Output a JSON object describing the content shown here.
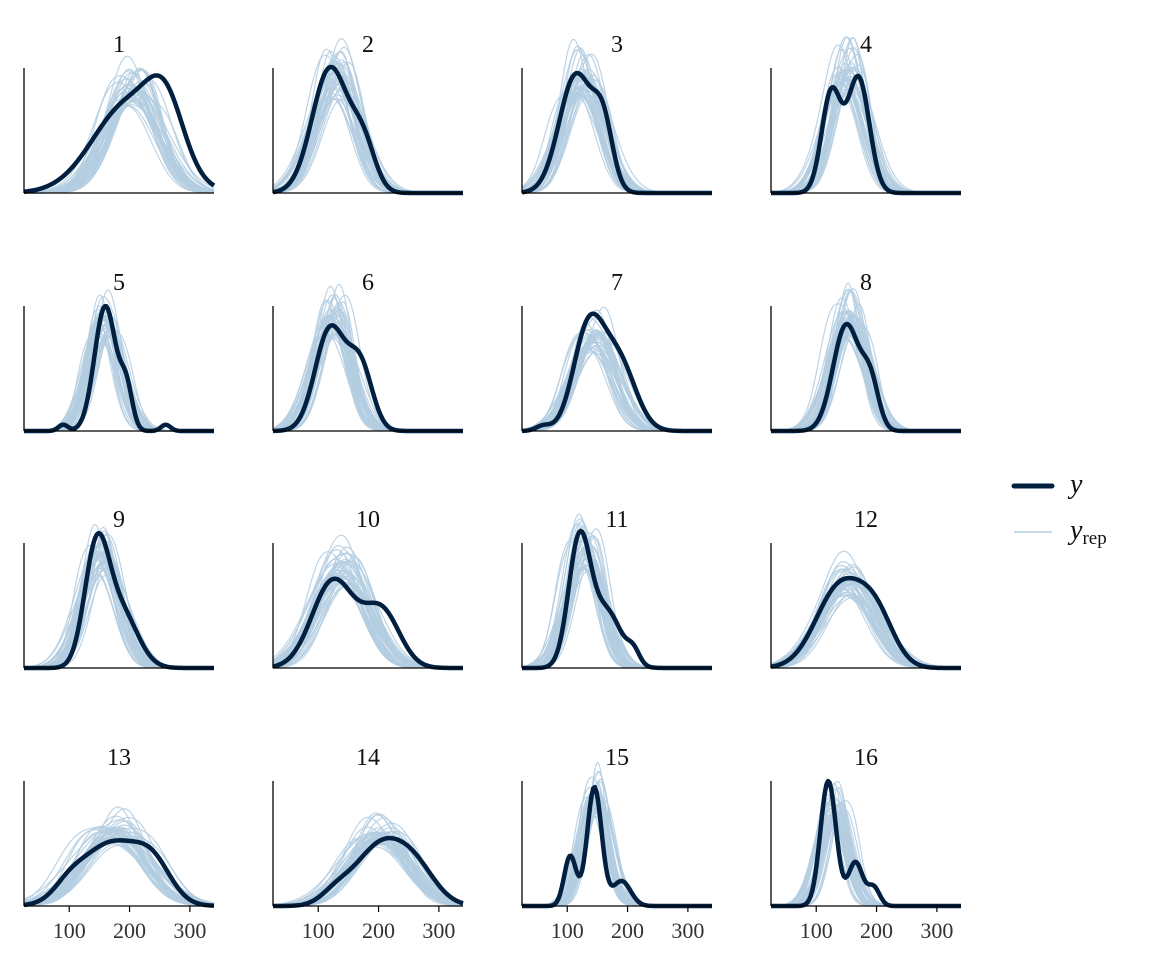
{
  "chart_data": {
    "type": "density-overlay",
    "x_range": [
      25,
      340
    ],
    "x_ticks": [
      100,
      200,
      300
    ],
    "x_tick_labels": [
      "100",
      "200",
      "300"
    ],
    "y_axis_ticks_shown": false,
    "grid": false,
    "colors": {
      "y": "#011f3f",
      "yrep": "#b3cde0",
      "axis": "#000000",
      "text": "#111111"
    },
    "legend": {
      "position": "right",
      "entries": [
        {
          "key": "y",
          "label": "y",
          "sub": ""
        },
        {
          "key": "yrep",
          "label": "y",
          "sub": "rep"
        }
      ]
    },
    "panels": [
      {
        "label": "1",
        "y_peaks": [
          [
            200,
            60,
            0.72
          ],
          [
            260,
            30,
            0.45
          ]
        ],
        "yrep_peak": [
          205,
          45
        ],
        "yrep_height": 0.86
      },
      {
        "label": "2",
        "y_peaks": [
          [
            120,
            30,
            1.0
          ],
          [
            175,
            20,
            0.35
          ]
        ],
        "yrep_peak": [
          130,
          35
        ],
        "yrep_height": 0.95
      },
      {
        "label": "3",
        "y_peaks": [
          [
            115,
            28,
            0.95
          ],
          [
            160,
            16,
            0.45
          ]
        ],
        "yrep_peak": [
          125,
          33
        ],
        "yrep_height": 0.98
      },
      {
        "label": "4",
        "y_peaks": [
          [
            125,
            16,
            0.8
          ],
          [
            170,
            18,
            0.92
          ]
        ],
        "yrep_peak": [
          150,
          30
        ],
        "yrep_height": 0.98
      },
      {
        "label": "5",
        "y_peaks": [
          [
            160,
            18,
            1.0
          ],
          [
            195,
            10,
            0.3
          ],
          [
            90,
            8,
            0.05
          ],
          [
            260,
            8,
            0.05
          ]
        ],
        "yrep_peak": [
          160,
          26
        ],
        "yrep_height": 0.92
      },
      {
        "label": "6",
        "y_peaks": [
          [
            120,
            25,
            0.82
          ],
          [
            170,
            20,
            0.5
          ]
        ],
        "yrep_peak": [
          125,
          30
        ],
        "yrep_height": 0.92
      },
      {
        "label": "7",
        "y_peaks": [
          [
            135,
            25,
            0.8
          ],
          [
            185,
            28,
            0.55
          ],
          [
            60,
            12,
            0.04
          ]
        ],
        "yrep_peak": [
          145,
          35
        ],
        "yrep_height": 0.8
      },
      {
        "label": "8",
        "y_peaks": [
          [
            150,
            22,
            0.85
          ],
          [
            190,
            14,
            0.35
          ]
        ],
        "yrep_peak": [
          155,
          28
        ],
        "yrep_height": 0.95
      },
      {
        "label": "9",
        "y_peaks": [
          [
            145,
            20,
            0.9
          ],
          [
            185,
            28,
            0.45
          ]
        ],
        "yrep_peak": [
          155,
          32
        ],
        "yrep_height": 0.92
      },
      {
        "label": "10",
        "y_peaks": [
          [
            125,
            35,
            0.7
          ],
          [
            205,
            30,
            0.45
          ]
        ],
        "yrep_peak": [
          140,
          42
        ],
        "yrep_height": 0.85
      },
      {
        "label": "11",
        "y_peaks": [
          [
            120,
            18,
            1.0
          ],
          [
            165,
            25,
            0.45
          ],
          [
            210,
            10,
            0.1
          ]
        ],
        "yrep_peak": [
          130,
          28
        ],
        "yrep_height": 0.98
      },
      {
        "label": "12",
        "y_peaks": [
          [
            140,
            40,
            0.65
          ],
          [
            200,
            30,
            0.35
          ]
        ],
        "yrep_peak": [
          150,
          45
        ],
        "yrep_height": 0.72
      },
      {
        "label": "13",
        "y_peaks": [
          [
            170,
            50,
            0.5
          ],
          [
            240,
            30,
            0.25
          ],
          [
            100,
            25,
            0.1
          ]
        ],
        "yrep_peak": [
          175,
          55
        ],
        "yrep_height": 0.62
      },
      {
        "label": "14",
        "y_peaks": [
          [
            200,
            40,
            0.45
          ],
          [
            260,
            35,
            0.28
          ],
          [
            130,
            25,
            0.1
          ]
        ],
        "yrep_peak": [
          200,
          50
        ],
        "yrep_height": 0.58
      },
      {
        "label": "15",
        "y_peaks": [
          [
            145,
            12,
            0.95
          ],
          [
            105,
            10,
            0.4
          ],
          [
            190,
            15,
            0.2
          ]
        ],
        "yrep_peak": [
          145,
          22
        ],
        "yrep_height": 0.9
      },
      {
        "label": "16",
        "y_peaks": [
          [
            120,
            13,
            1.0
          ],
          [
            165,
            12,
            0.35
          ],
          [
            195,
            10,
            0.15
          ]
        ],
        "yrep_peak": [
          130,
          22
        ],
        "yrep_height": 0.82
      }
    ]
  }
}
